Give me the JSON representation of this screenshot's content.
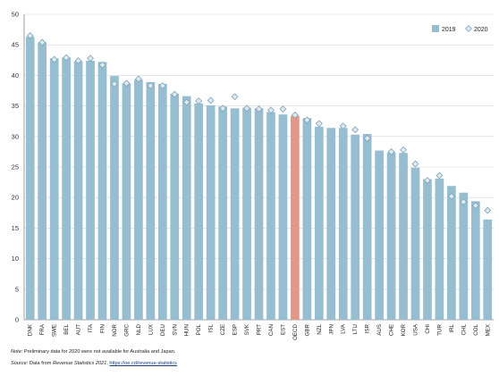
{
  "chart_data": {
    "type": "bar",
    "categories": [
      "DNK",
      "FRA",
      "SWE",
      "BEL",
      "AUT",
      "ITA",
      "FIN",
      "NOR",
      "GRC",
      "NLD",
      "LUX",
      "DEU",
      "SVN",
      "HUN",
      "POL",
      "ISL",
      "CZE",
      "ESP",
      "SVK",
      "PRT",
      "CAN",
      "EST",
      "OECD",
      "GBR",
      "NZL",
      "JPN",
      "LVA",
      "LTU",
      "ISR",
      "AUS",
      "CHE",
      "KOR",
      "USA",
      "CHI",
      "TUR",
      "IRL",
      "CHL",
      "COL",
      "MEX"
    ],
    "series": [
      {
        "name": "2019",
        "type": "bar",
        "values": [
          46.3,
          45.4,
          42.8,
          42.9,
          42.3,
          42.4,
          42.2,
          39.9,
          38.7,
          39.3,
          38.9,
          38.6,
          37.0,
          36.6,
          35.4,
          35.1,
          34.9,
          34.6,
          34.7,
          34.6,
          34.0,
          33.6,
          33.4,
          33.0,
          31.6,
          31.4,
          31.4,
          30.3,
          30.4,
          27.7,
          27.4,
          27.3,
          24.9,
          23.0,
          23.1,
          21.9,
          20.8,
          19.4,
          16.4
        ]
      },
      {
        "name": "2020",
        "type": "scatter",
        "values": [
          46.5,
          45.4,
          42.6,
          42.9,
          42.4,
          42.8,
          41.7,
          38.6,
          38.7,
          39.4,
          38.3,
          38.3,
          36.9,
          35.6,
          35.8,
          35.9,
          34.6,
          36.5,
          34.6,
          34.5,
          34.3,
          34.5,
          33.5,
          32.7,
          32.1,
          null,
          31.7,
          31.1,
          29.7,
          null,
          27.5,
          27.8,
          25.5,
          22.8,
          23.6,
          20.2,
          19.3,
          18.7,
          17.9
        ]
      }
    ],
    "highlight_category": "OECD",
    "ylim": [
      0,
      50
    ],
    "yticks": [
      "0",
      "5",
      "10",
      "15",
      "20",
      "25",
      "30",
      "35",
      "40",
      "45",
      "50"
    ],
    "grid": true,
    "legend_position": "top-right",
    "colors": {
      "bar": "#96bdd0",
      "highlight": "#e39789",
      "marker_fill": "#dfe9ef",
      "marker_stroke": "#7ea3b8",
      "grid": "#d6d6d6"
    }
  },
  "footnotes": {
    "note_label": "Note:",
    "note_text": " Preliminary data for 2020 were not available for Australia and Japan.",
    "source_label": "Source:",
    "source_prefix": " Data from ",
    "source_title": "Revenue Statistics 2021",
    "source_sep": ", ",
    "source_link": "https://oe.cd/revenue-statistics"
  }
}
